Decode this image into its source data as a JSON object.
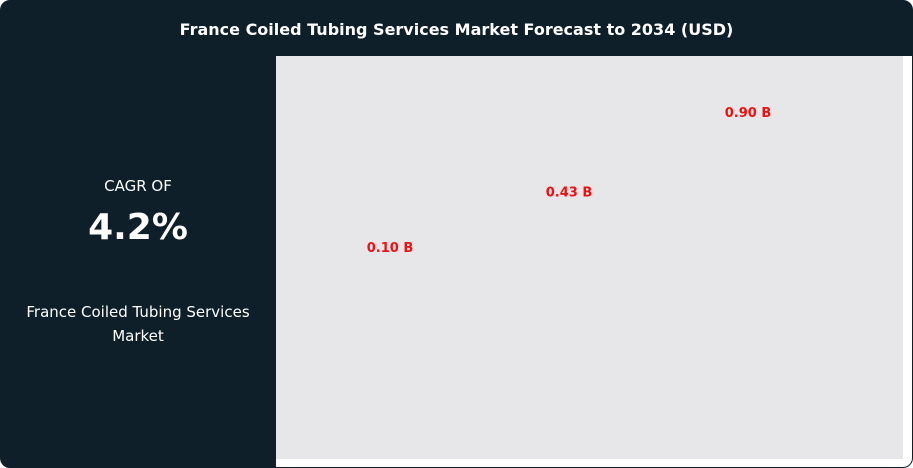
{
  "title": "France Coiled Tubing Services Market Forecast to 2034 (USD)",
  "side_panel": {
    "cagr_label": "CAGR OF",
    "cagr_value": "4.2%",
    "market_name": "France Coiled Tubing Services Market"
  },
  "colors": {
    "background": "#0e1f2a",
    "plot_background": "#e7e6e9",
    "label": "#ee1111"
  },
  "chart_data": {
    "type": "bar",
    "values": [
      0.1,
      0.43,
      0.9
    ],
    "data_labels": [
      "0.10 B",
      "0.43 B",
      "0.90 B"
    ],
    "unit": "B",
    "grid": false
  }
}
